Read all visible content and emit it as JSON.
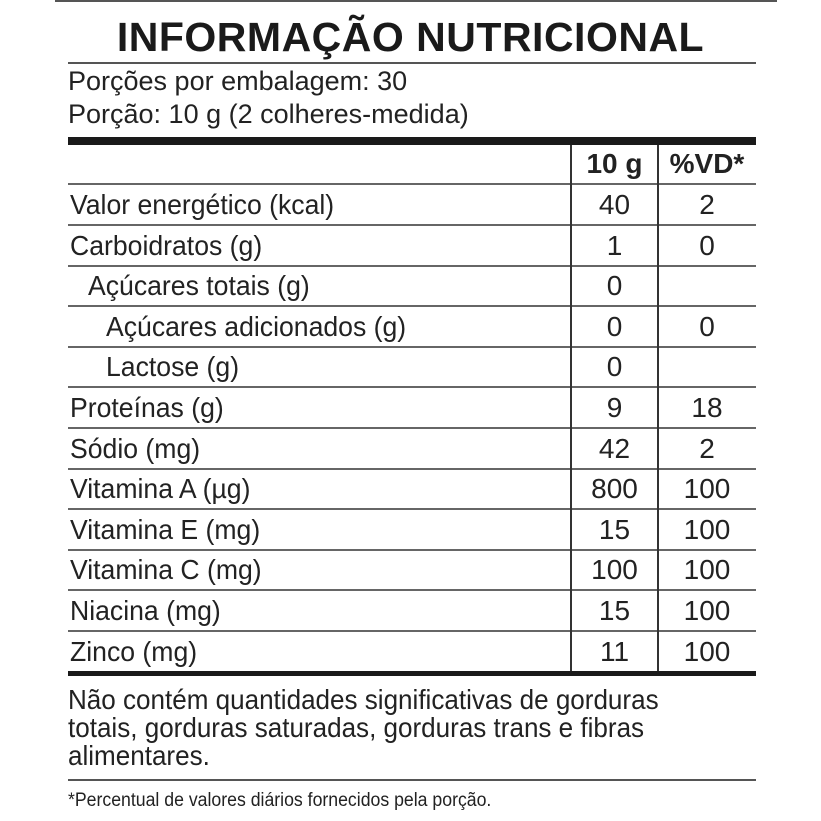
{
  "title": "INFORMAÇÃO NUTRICIONAL",
  "servings_per_package": "Porções por embalagem: 30",
  "serving_size": "Porção: 10 g (2 colheres-medida)",
  "headers": {
    "amount": "10 g",
    "dv": "%VD*"
  },
  "rows": [
    {
      "label": "Valor energético (kcal)",
      "amount": "40",
      "dv": "2",
      "indent": 0
    },
    {
      "label": "Carboidratos (g)",
      "amount": "1",
      "dv": "0",
      "indent": 0
    },
    {
      "label": "Açúcares totais (g)",
      "amount": "0",
      "dv": "",
      "indent": 1
    },
    {
      "label": "Açúcares adicionados (g)",
      "amount": "0",
      "dv": "0",
      "indent": 2
    },
    {
      "label": "Lactose (g)",
      "amount": "0",
      "dv": "",
      "indent": 2
    },
    {
      "label": "Proteínas (g)",
      "amount": "9",
      "dv": "18",
      "indent": 0
    },
    {
      "label": "Sódio (mg)",
      "amount": "42",
      "dv": "2",
      "indent": 0
    },
    {
      "label": "Vitamina A (µg)",
      "amount": "800",
      "dv": "100",
      "indent": 0
    },
    {
      "label": "Vitamina E (mg)",
      "amount": "15",
      "dv": "100",
      "indent": 0
    },
    {
      "label": "Vitamina C (mg)",
      "amount": "100",
      "dv": "100",
      "indent": 0
    },
    {
      "label": "Niacina (mg)",
      "amount": "15",
      "dv": "100",
      "indent": 0
    },
    {
      "label": "Zinco (mg)",
      "amount": "11",
      "dv": "100",
      "indent": 0
    }
  ],
  "note": "Não contém quantidades significativas de gorduras totais, gorduras saturadas, gorduras trans e fibras alimentares.",
  "footnote": "*Percentual de valores diários fornecidos pela porção."
}
